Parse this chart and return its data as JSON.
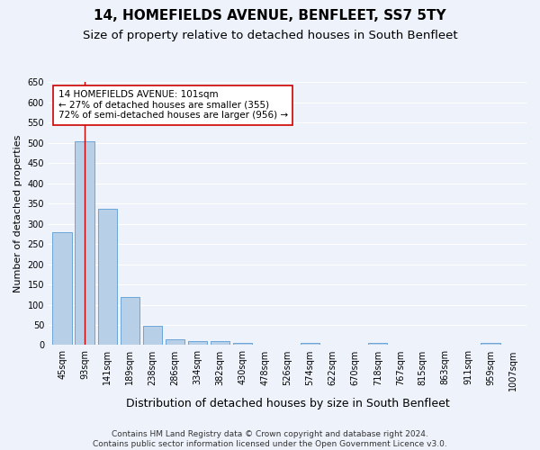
{
  "title": "14, HOMEFIELDS AVENUE, BENFLEET, SS7 5TY",
  "subtitle": "Size of property relative to detached houses in South Benfleet",
  "xlabel": "Distribution of detached houses by size in South Benfleet",
  "ylabel": "Number of detached properties",
  "categories": [
    "45sqm",
    "93sqm",
    "141sqm",
    "189sqm",
    "238sqm",
    "286sqm",
    "334sqm",
    "382sqm",
    "430sqm",
    "478sqm",
    "526sqm",
    "574sqm",
    "622sqm",
    "670sqm",
    "718sqm",
    "767sqm",
    "815sqm",
    "863sqm",
    "911sqm",
    "959sqm",
    "1007sqm"
  ],
  "values": [
    280,
    505,
    338,
    118,
    47,
    15,
    10,
    10,
    5,
    0,
    0,
    5,
    0,
    0,
    5,
    0,
    0,
    0,
    0,
    5,
    0
  ],
  "bar_color": "#b8cfe8",
  "bar_edge_color": "#5b9bd5",
  "vline_x": 1.0,
  "vline_color": "#cc0000",
  "annotation_text": "14 HOMEFIELDS AVENUE: 101sqm\n← 27% of detached houses are smaller (355)\n72% of semi-detached houses are larger (956) →",
  "annotation_box_color": "#ffffff",
  "annotation_box_edge_color": "#cc0000",
  "ylim": [
    0,
    650
  ],
  "yticks": [
    0,
    50,
    100,
    150,
    200,
    250,
    300,
    350,
    400,
    450,
    500,
    550,
    600,
    650
  ],
  "background_color": "#eef2fb",
  "axes_background_color": "#eef2fb",
  "grid_color": "#ffffff",
  "footnote": "Contains HM Land Registry data © Crown copyright and database right 2024.\nContains public sector information licensed under the Open Government Licence v3.0.",
  "title_fontsize": 11,
  "subtitle_fontsize": 9.5,
  "xlabel_fontsize": 9,
  "ylabel_fontsize": 8,
  "tick_fontsize": 7,
  "annotation_fontsize": 7.5,
  "footnote_fontsize": 6.5
}
